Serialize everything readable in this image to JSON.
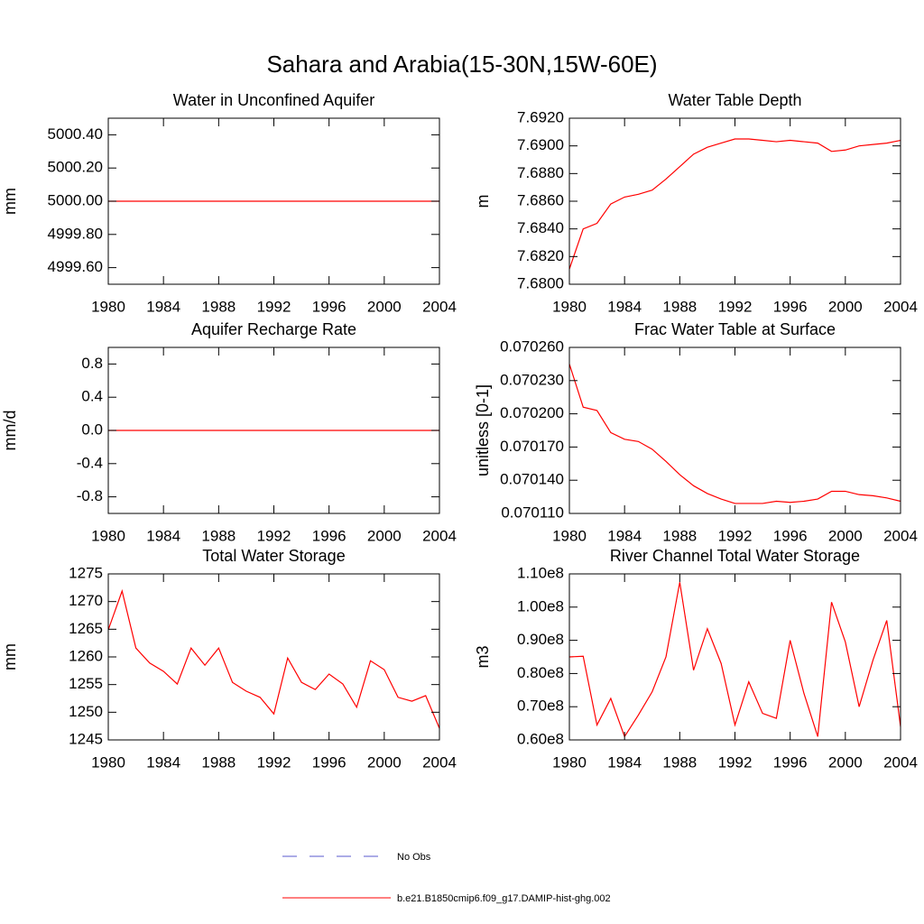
{
  "title": "Sahara and Arabia(15-30N,15W-60E)",
  "legend": [
    {
      "name": "No Obs",
      "color": "#5a5acd",
      "dashed": true
    },
    {
      "name": "b.e21.B1850cmip6.f09_g17.DAMIP-hist-ghg.002",
      "color": "#ff0000",
      "dashed": false
    }
  ],
  "chart_data": [
    {
      "type": "line",
      "title": "Water in Unconfined Aquifer",
      "y_label": "mm",
      "x": [
        1980,
        1981,
        1982,
        1983,
        1984,
        1985,
        1986,
        1987,
        1988,
        1989,
        1990,
        1991,
        1992,
        1993,
        1994,
        1995,
        1996,
        1997,
        1998,
        1999,
        2000,
        2001,
        2002,
        2003,
        2004
      ],
      "xlim": [
        1980,
        2004
      ],
      "xticks": [
        1980,
        1984,
        1988,
        1992,
        1996,
        2000,
        2004
      ],
      "ylim": [
        4999.5,
        5000.5
      ],
      "yticks": [
        {
          "value": 4999.6,
          "label": "4999.60"
        },
        {
          "value": 4999.8,
          "label": "4999.80"
        },
        {
          "value": 5000,
          "label": "5000.00"
        },
        {
          "value": 5000.2,
          "label": "5000.20"
        },
        {
          "value": 5000.4,
          "label": "5000.40"
        }
      ],
      "series": [
        {
          "color": "#ff0000",
          "values": [
            5000,
            5000,
            5000,
            5000,
            5000,
            5000,
            5000,
            5000,
            5000,
            5000,
            5000,
            5000,
            5000,
            5000,
            5000,
            5000,
            5000,
            5000,
            5000,
            5000,
            5000,
            5000,
            5000,
            5000,
            5000
          ]
        }
      ]
    },
    {
      "type": "line",
      "title": "Water Table Depth",
      "y_label": "m",
      "x": [
        1980,
        1981,
        1982,
        1983,
        1984,
        1985,
        1986,
        1987,
        1988,
        1989,
        1990,
        1991,
        1992,
        1993,
        1994,
        1995,
        1996,
        1997,
        1998,
        1999,
        2000,
        2001,
        2002,
        2003,
        2004
      ],
      "xlim": [
        1980,
        2004
      ],
      "xticks": [
        1980,
        1984,
        1988,
        1992,
        1996,
        2000,
        2004
      ],
      "ylim": [
        7.68,
        7.692
      ],
      "yticks": [
        {
          "value": 7.68,
          "label": "7.6800"
        },
        {
          "value": 7.682,
          "label": "7.6820"
        },
        {
          "value": 7.684,
          "label": "7.6840"
        },
        {
          "value": 7.686,
          "label": "7.6860"
        },
        {
          "value": 7.688,
          "label": "7.6880"
        },
        {
          "value": 7.69,
          "label": "7.6900"
        },
        {
          "value": 7.692,
          "label": "7.6920"
        }
      ],
      "series": [
        {
          "color": "#ff0000",
          "values": [
            7.6811,
            7.684,
            7.6844,
            7.6858,
            7.6863,
            7.6865,
            7.6868,
            7.6876,
            7.6885,
            7.6894,
            7.6899,
            7.6902,
            7.6905,
            7.6905,
            7.6904,
            7.6903,
            7.6904,
            7.6903,
            7.6902,
            7.6896,
            7.6897,
            7.69,
            7.6901,
            7.6902,
            7.6904
          ]
        }
      ]
    },
    {
      "type": "line",
      "title": "Aquifer Recharge Rate",
      "y_label": "mm/d",
      "x": [
        1980,
        1981,
        1982,
        1983,
        1984,
        1985,
        1986,
        1987,
        1988,
        1989,
        1990,
        1991,
        1992,
        1993,
        1994,
        1995,
        1996,
        1997,
        1998,
        1999,
        2000,
        2001,
        2002,
        2003,
        2004
      ],
      "xlim": [
        1980,
        2004
      ],
      "xticks": [
        1980,
        1984,
        1988,
        1992,
        1996,
        2000,
        2004
      ],
      "ylim": [
        -1,
        1
      ],
      "yticks": [
        -0.8,
        -0.4,
        {
          "value": 0,
          "label": "0.0"
        },
        0.4,
        0.8
      ],
      "series": [
        {
          "color": "#ff0000",
          "values": [
            0,
            0,
            0,
            0,
            0,
            0,
            0,
            0,
            0,
            0,
            0,
            0,
            0,
            0,
            0,
            0,
            0,
            0,
            0,
            0,
            0,
            0,
            0,
            0,
            0
          ]
        }
      ]
    },
    {
      "type": "line",
      "title": "Frac Water Table at Surface",
      "y_label": "unitless [0-1]",
      "x": [
        1980,
        1981,
        1982,
        1983,
        1984,
        1985,
        1986,
        1987,
        1988,
        1989,
        1990,
        1991,
        1992,
        1993,
        1994,
        1995,
        1996,
        1997,
        1998,
        1999,
        2000,
        2001,
        2002,
        2003,
        2004
      ],
      "xlim": [
        1980,
        2004
      ],
      "xticks": [
        1980,
        1984,
        1988,
        1992,
        1996,
        2000,
        2004
      ],
      "ylim": [
        0.07011,
        0.07026
      ],
      "yticks": [
        {
          "value": 0.07011,
          "label": "0.070110"
        },
        {
          "value": 0.07014,
          "label": "0.070140"
        },
        {
          "value": 0.07017,
          "label": "0.070170"
        },
        {
          "value": 0.0702,
          "label": "0.070200"
        },
        {
          "value": 0.07023,
          "label": "0.070230"
        },
        {
          "value": 0.07026,
          "label": "0.070260"
        }
      ],
      "series": [
        {
          "color": "#ff0000",
          "values": [
            0.070245,
            0.070206,
            0.070203,
            0.070183,
            0.070177,
            0.070175,
            0.070168,
            0.070157,
            0.070145,
            0.070135,
            0.070128,
            0.070123,
            0.070119,
            0.070119,
            0.070119,
            0.070121,
            0.07012,
            0.070121,
            0.070123,
            0.07013,
            0.07013,
            0.070127,
            0.070126,
            0.070124,
            0.070121
          ]
        }
      ]
    },
    {
      "type": "line",
      "title": "Total Water Storage",
      "y_label": "mm",
      "x": [
        1980,
        1981,
        1982,
        1983,
        1984,
        1985,
        1986,
        1987,
        1988,
        1989,
        1990,
        1991,
        1992,
        1993,
        1994,
        1995,
        1996,
        1997,
        1998,
        1999,
        2000,
        2001,
        2002,
        2003,
        2004
      ],
      "xlim": [
        1980,
        2004
      ],
      "xticks": [
        1980,
        1984,
        1988,
        1992,
        1996,
        2000,
        2004
      ],
      "ylim": [
        1245,
        1275
      ],
      "yticks": [
        1245,
        1250,
        1255,
        1260,
        1265,
        1270,
        1275
      ],
      "series": [
        {
          "color": "#ff0000",
          "values": [
            1264.9,
            1271.9,
            1261.6,
            1258.9,
            1257.4,
            1255.1,
            1261.6,
            1258.5,
            1261.6,
            1255.4,
            1253.8,
            1252.7,
            1249.7,
            1259.8,
            1255.4,
            1254.1,
            1256.9,
            1255.1,
            1250.9,
            1259.3,
            1257.7,
            1252.7,
            1252.0,
            1253.0,
            1247.1
          ]
        }
      ]
    },
    {
      "type": "line",
      "title": "River Channel Total Water Storage",
      "y_label": "m3",
      "x": [
        1980,
        1981,
        1982,
        1983,
        1984,
        1985,
        1986,
        1987,
        1988,
        1989,
        1990,
        1991,
        1992,
        1993,
        1994,
        1995,
        1996,
        1997,
        1998,
        1999,
        2000,
        2001,
        2002,
        2003,
        2004
      ],
      "xlim": [
        1980,
        2004
      ],
      "xticks": [
        1980,
        1984,
        1988,
        1992,
        1996,
        2000,
        2004
      ],
      "ylim": [
        60000000,
        110000000
      ],
      "yticks": [
        {
          "value": 60000000,
          "label": "0.60e8"
        },
        {
          "value": 70000000,
          "label": "0.70e8"
        },
        {
          "value": 80000000,
          "label": "0.80e8"
        },
        {
          "value": 90000000,
          "label": "0.90e8"
        },
        {
          "value": 100000000,
          "label": "1.00e8"
        },
        {
          "value": 110000000,
          "label": "1.10e8"
        }
      ],
      "series": [
        {
          "color": "#ff0000",
          "values": [
            85000000,
            85200000,
            64500000,
            72500000,
            61000000,
            67500000,
            74500000,
            85000000,
            107500000,
            81000000,
            93500000,
            83000000,
            64500000,
            77500000,
            68000000,
            66500000,
            90000000,
            74000000,
            61000000,
            101500000,
            89500000,
            70000000,
            84000000,
            96000000,
            64000000
          ]
        }
      ]
    }
  ]
}
